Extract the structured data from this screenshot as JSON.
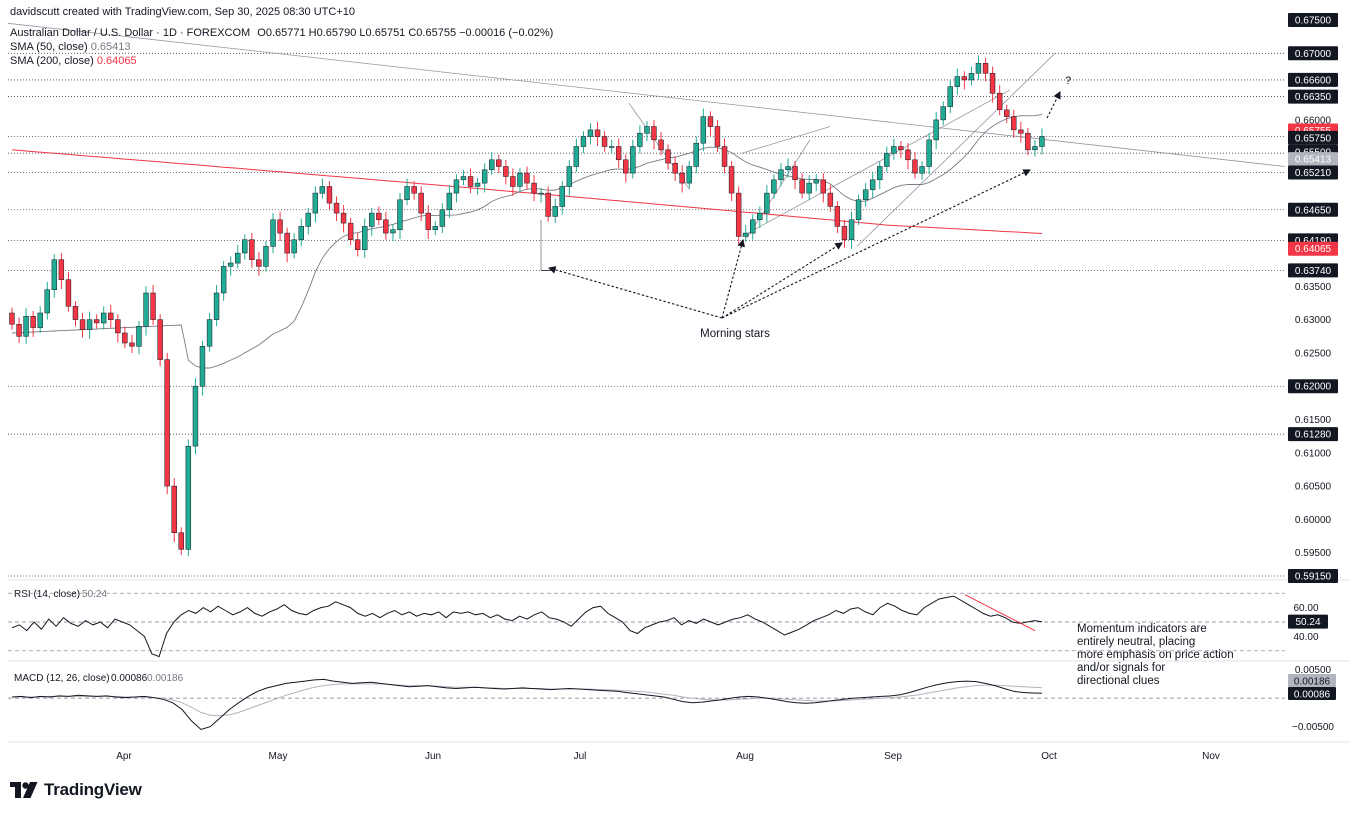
{
  "header": {
    "creator": "davidscutt created with TradingView.com, Sep 30, 2025 08:30 UTC+10",
    "symbol": "Australian Dollar / U.S. Dollar · 1D · FOREXCOM",
    "ohlc": "O0.65771 H0.65790 L0.65751 C0.65755 −0.00016 (−0.02%)",
    "sma50_label": "SMA (50, close)",
    "sma50_value": "0.65413",
    "sma200_label": "SMA (200, close)",
    "sma200_value": "0.64065"
  },
  "colors": {
    "up": "#22ab94",
    "down": "#f23645",
    "sma50": "#787b86",
    "sma200": "#f23645",
    "text": "#131722",
    "muted": "#787b86",
    "rsi_line": "#131722",
    "macd_line": "#131722",
    "signal_line": "#b2b5be",
    "highlight_red": "#f23645",
    "highlight_gray": "#b2b5be"
  },
  "watermark": "TradingView",
  "chart_data": [
    {
      "type": "candlestick",
      "title": "Australian Dollar / U.S. Dollar · 1D · FOREXCOM",
      "x_labels": [
        "Apr",
        "May",
        "Jun",
        "Jul",
        "Aug",
        "Sep",
        "Oct",
        "Nov"
      ],
      "ylim": [
        0.5915,
        0.675
      ],
      "y_tick_labels": [
        "0.67500",
        "0.67000",
        "0.66600",
        "0.66350",
        "0.66000",
        "0.65755",
        "0.65750",
        "0.65500",
        "0.65413",
        "0.65210",
        "0.64650",
        "0.64190",
        "0.64065",
        "0.63740",
        "0.63500",
        "0.63000",
        "0.62500",
        "0.62000",
        "0.61500",
        "0.61280",
        "0.61000",
        "0.60500",
        "0.60000",
        "0.59500",
        "0.59150"
      ],
      "horizontal_levels": [
        0.67,
        0.666,
        0.6635,
        0.6575,
        0.655,
        0.6521,
        0.6465,
        0.6419,
        0.6374,
        0.62,
        0.6128,
        0.5915
      ],
      "last_price": "0.65755",
      "sma50_value": "0.65413",
      "sma200_value": "0.64065",
      "closes": [
        0.6293,
        0.6275,
        0.6305,
        0.6288,
        0.631,
        0.6345,
        0.639,
        0.636,
        0.632,
        0.63,
        0.6285,
        0.63,
        0.6295,
        0.631,
        0.63,
        0.628,
        0.6265,
        0.626,
        0.629,
        0.634,
        0.63,
        0.624,
        0.605,
        0.598,
        0.5955,
        0.611,
        0.62,
        0.626,
        0.63,
        0.634,
        0.638,
        0.6385,
        0.64,
        0.642,
        0.639,
        0.638,
        0.641,
        0.645,
        0.643,
        0.64,
        0.642,
        0.644,
        0.646,
        0.649,
        0.65,
        0.6475,
        0.646,
        0.6445,
        0.642,
        0.6405,
        0.644,
        0.646,
        0.645,
        0.643,
        0.6435,
        0.648,
        0.65,
        0.649,
        0.646,
        0.6435,
        0.644,
        0.6465,
        0.649,
        0.651,
        0.6515,
        0.65,
        0.6505,
        0.6525,
        0.654,
        0.653,
        0.6515,
        0.65,
        0.652,
        0.6505,
        0.649,
        0.649,
        0.6455,
        0.647,
        0.65,
        0.653,
        0.656,
        0.6575,
        0.6585,
        0.6575,
        0.656,
        0.656,
        0.654,
        0.652,
        0.656,
        0.658,
        0.659,
        0.657,
        0.6555,
        0.6535,
        0.652,
        0.6505,
        0.653,
        0.6565,
        0.6605,
        0.659,
        0.656,
        0.653,
        0.649,
        0.6425,
        0.643,
        0.645,
        0.646,
        0.649,
        0.651,
        0.6525,
        0.653,
        0.651,
        0.649,
        0.6505,
        0.651,
        0.649,
        0.647,
        0.644,
        0.642,
        0.645,
        0.648,
        0.6495,
        0.651,
        0.653,
        0.655,
        0.656,
        0.6555,
        0.654,
        0.652,
        0.653,
        0.657,
        0.66,
        0.662,
        0.665,
        0.6665,
        0.666,
        0.667,
        0.6685,
        0.667,
        0.664,
        0.6615,
        0.6605,
        0.6585,
        0.658,
        0.6555,
        0.656,
        0.6575
      ],
      "opens": [
        0.631,
        0.6293,
        0.6275,
        0.6305,
        0.6288,
        0.631,
        0.6345,
        0.639,
        0.636,
        0.632,
        0.63,
        0.6285,
        0.63,
        0.6295,
        0.631,
        0.63,
        0.628,
        0.6265,
        0.626,
        0.629,
        0.634,
        0.63,
        0.624,
        0.605,
        0.598,
        0.5955,
        0.611,
        0.62,
        0.626,
        0.63,
        0.634,
        0.638,
        0.6385,
        0.64,
        0.642,
        0.639,
        0.638,
        0.641,
        0.645,
        0.643,
        0.64,
        0.642,
        0.644,
        0.646,
        0.649,
        0.65,
        0.6475,
        0.646,
        0.6445,
        0.642,
        0.6405,
        0.644,
        0.646,
        0.645,
        0.643,
        0.6435,
        0.648,
        0.65,
        0.649,
        0.646,
        0.6435,
        0.644,
        0.6465,
        0.649,
        0.651,
        0.6515,
        0.65,
        0.6505,
        0.6525,
        0.654,
        0.653,
        0.6515,
        0.65,
        0.652,
        0.6505,
        0.649,
        0.649,
        0.6455,
        0.647,
        0.65,
        0.653,
        0.656,
        0.6575,
        0.6585,
        0.6575,
        0.656,
        0.656,
        0.654,
        0.652,
        0.656,
        0.658,
        0.659,
        0.657,
        0.6555,
        0.6535,
        0.652,
        0.6505,
        0.653,
        0.6565,
        0.6605,
        0.659,
        0.656,
        0.653,
        0.649,
        0.6425,
        0.643,
        0.645,
        0.646,
        0.649,
        0.651,
        0.6525,
        0.653,
        0.651,
        0.649,
        0.6505,
        0.651,
        0.649,
        0.647,
        0.644,
        0.642,
        0.645,
        0.648,
        0.6495,
        0.651,
        0.653,
        0.655,
        0.656,
        0.6555,
        0.654,
        0.652,
        0.653,
        0.657,
        0.66,
        0.662,
        0.665,
        0.6665,
        0.666,
        0.667,
        0.6685,
        0.667,
        0.664,
        0.6615,
        0.6605,
        0.6585,
        0.658,
        0.6555,
        0.656,
        0.6577
      ],
      "annotations": [
        "Morning stars",
        "?"
      ]
    },
    {
      "type": "line",
      "title": "RSI (14, close)",
      "value": "50.24",
      "y_tick_labels": [
        "60.00",
        "50.24",
        "40.00"
      ],
      "levels": [
        70,
        50,
        30
      ],
      "ylim": [
        25,
        75
      ],
      "values": [
        46,
        48,
        44,
        50,
        45,
        52,
        47,
        53,
        49,
        47,
        51,
        48,
        50,
        46,
        52,
        50,
        48,
        44,
        40,
        28,
        26,
        42,
        50,
        55,
        58,
        56,
        60,
        57,
        61,
        58,
        55,
        57,
        60,
        56,
        54,
        57,
        59,
        62,
        58,
        56,
        55,
        58,
        60,
        61,
        64,
        62,
        60,
        56,
        54,
        56,
        53,
        56,
        58,
        55,
        57,
        54,
        56,
        55,
        57,
        53,
        57,
        56,
        57,
        55,
        56,
        53,
        55,
        52,
        51,
        54,
        52,
        55,
        57,
        53,
        52,
        50,
        47,
        52,
        57,
        60,
        61,
        56,
        53,
        50,
        44,
        42,
        46,
        48,
        50,
        51,
        53,
        48,
        51,
        49,
        52,
        50,
        48,
        50,
        52,
        53,
        55,
        52,
        50,
        47,
        44,
        41,
        43,
        45,
        48,
        51,
        53,
        55,
        58,
        56,
        59,
        60,
        57,
        55,
        60,
        63,
        61,
        58,
        56,
        55,
        60,
        63,
        66,
        67,
        68,
        65,
        62,
        59,
        56,
        54,
        55,
        53,
        50,
        49,
        50,
        51,
        50.24
      ],
      "annotation": "Momentum indicators are entirely neutral, placing more emphasis on price action and/or signals for directional clues"
    },
    {
      "type": "line",
      "title": "MACD (12, 26, close)",
      "macd_value": "0.00086",
      "signal_value": "0.00186",
      "y_tick_labels": [
        "0.00500",
        "0.00186",
        "0.00086",
        "−0.00500"
      ],
      "ylim": [
        -0.007,
        0.006
      ],
      "macd": [
        0.0002,
        0.0003,
        0.0001,
        0.0003,
        0.0002,
        0.0004,
        0.0003,
        0.0005,
        0.0004,
        0.0003,
        0.0004,
        0.0002,
        0.0001,
        0.0002,
        0.0003,
        0.0001,
        -0.0002,
        -0.0008,
        -0.002,
        -0.004,
        -0.0055,
        -0.005,
        -0.0035,
        -0.002,
        -0.0008,
        0.0003,
        0.0012,
        0.0018,
        0.0022,
        0.0026,
        0.0028,
        0.003,
        0.0032,
        0.0033,
        0.003,
        0.0028,
        0.0026,
        0.0027,
        0.0028,
        0.0026,
        0.0024,
        0.0022,
        0.002,
        0.0021,
        0.0022,
        0.002,
        0.0018,
        0.0017,
        0.0018,
        0.0019,
        0.0018,
        0.0017,
        0.0016,
        0.0017,
        0.0018,
        0.0017,
        0.0016,
        0.0015,
        0.0016,
        0.0017,
        0.0016,
        0.0015,
        0.0014,
        0.0013,
        0.0012,
        0.001,
        0.0008,
        0.0006,
        0.0004,
        0.0002,
        -0.0002,
        -0.0006,
        -0.0008,
        -0.0007,
        -0.0005,
        -0.0003,
        0.0,
        0.0002,
        0.0003,
        0.0002,
        0.0,
        -0.0003,
        -0.0006,
        -0.0008,
        -0.0009,
        -0.0008,
        -0.0006,
        -0.0004,
        -0.0002,
        0.0,
        0.0001,
        0.0002,
        0.0003,
        0.0004,
        0.0006,
        0.001,
        0.0015,
        0.002,
        0.0024,
        0.0027,
        0.0029,
        0.003,
        0.0029,
        0.0026,
        0.0022,
        0.0017,
        0.0012,
        0.001,
        0.0009,
        0.00086
      ],
      "signal": [
        0.0002,
        0.0002,
        0.0002,
        0.0002,
        0.0003,
        0.0003,
        0.0003,
        0.0003,
        0.0003,
        0.0003,
        0.0003,
        0.0003,
        0.0002,
        0.0002,
        0.0002,
        0.0001,
        0.0,
        -0.0003,
        -0.0008,
        -0.0016,
        -0.0025,
        -0.003,
        -0.0031,
        -0.0029,
        -0.0025,
        -0.0019,
        -0.0013,
        -0.0007,
        -0.0001,
        0.0005,
        0.001,
        0.0015,
        0.0019,
        0.0022,
        0.0024,
        0.0025,
        0.0025,
        0.0025,
        0.0025,
        0.0025,
        0.0024,
        0.0023,
        0.0022,
        0.0022,
        0.0022,
        0.0021,
        0.002,
        0.0019,
        0.0019,
        0.0019,
        0.0018,
        0.0018,
        0.0017,
        0.0017,
        0.0017,
        0.0017,
        0.0017,
        0.0016,
        0.0016,
        0.0016,
        0.0016,
        0.0016,
        0.0015,
        0.0015,
        0.0014,
        0.0013,
        0.0012,
        0.0011,
        0.0009,
        0.0007,
        0.0005,
        0.0002,
        0.0,
        -0.0002,
        -0.0003,
        -0.0003,
        -0.0003,
        -0.0002,
        -0.0001,
        0.0,
        0.0,
        -0.0001,
        -0.0002,
        -0.0003,
        -0.0004,
        -0.0005,
        -0.0005,
        -0.0005,
        -0.0004,
        -0.0003,
        -0.0002,
        -0.0001,
        0.0,
        0.0001,
        0.0002,
        0.0004,
        0.0006,
        0.0009,
        0.0012,
        0.0015,
        0.0018,
        0.002,
        0.0022,
        0.0023,
        0.0023,
        0.0022,
        0.0021,
        0.002,
        0.0019,
        0.00186
      ]
    }
  ]
}
